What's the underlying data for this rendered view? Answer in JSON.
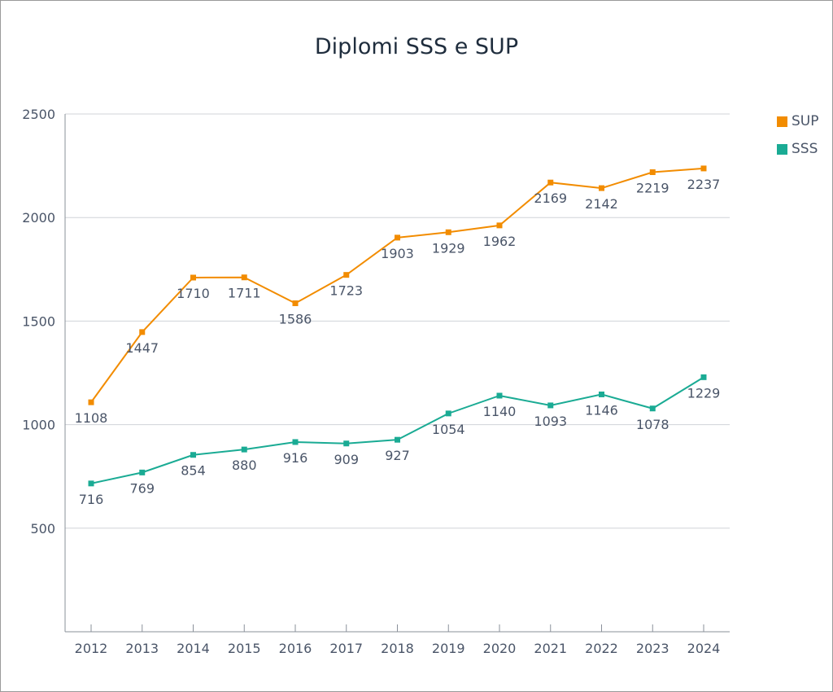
{
  "chart_data": {
    "type": "line",
    "title": "Diplomi SSS e SUP",
    "xlabel": "",
    "ylabel": "",
    "categories": [
      "2012",
      "2013",
      "2014",
      "2015",
      "2016",
      "2017",
      "2018",
      "2019",
      "2020",
      "2021",
      "2022",
      "2023",
      "2024"
    ],
    "ylim": [
      0,
      2500
    ],
    "yticks": [
      500,
      1000,
      1500,
      2000,
      2500
    ],
    "grid": true,
    "legend_position": "top-right",
    "series": [
      {
        "name": "SUP",
        "color": "#f28c00",
        "values": [
          1108,
          1447,
          1710,
          1711,
          1586,
          1723,
          1903,
          1929,
          1962,
          2169,
          2142,
          2219,
          2237
        ]
      },
      {
        "name": "SSS",
        "color": "#1aab94",
        "values": [
          716,
          769,
          854,
          880,
          916,
          909,
          927,
          1054,
          1140,
          1093,
          1146,
          1078,
          1229
        ]
      }
    ]
  }
}
